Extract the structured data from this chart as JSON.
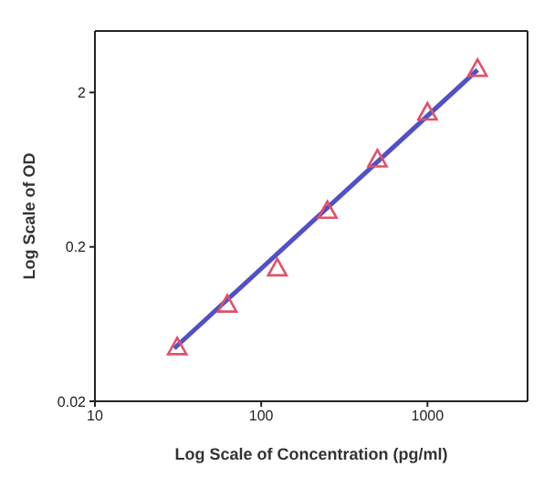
{
  "chart_data": {
    "type": "scatter",
    "xlabel": "Log Scale of Concentration (pg/ml)",
    "ylabel": "Log Scale of OD",
    "log": "xy",
    "xlim": [
      10,
      4000
    ],
    "ylim": [
      0.02,
      5
    ],
    "xticks": [
      10,
      100,
      1000
    ],
    "yticks": [
      0.02,
      0.2,
      2
    ],
    "grid": false,
    "x": [
      31.25,
      62.5,
      125,
      250,
      500,
      1000,
      2000
    ],
    "series": [
      {
        "color": "#e0506a",
        "marker": "triangle",
        "values": [
          0.045,
          0.085,
          0.146,
          0.344,
          0.74,
          1.49,
          2.86
        ]
      },
      {
        "type": "line",
        "color": "#5050c8",
        "marker": "none",
        "x": [
          30,
          2000
        ],
        "values": [
          0.044,
          2.8
        ]
      }
    ]
  }
}
